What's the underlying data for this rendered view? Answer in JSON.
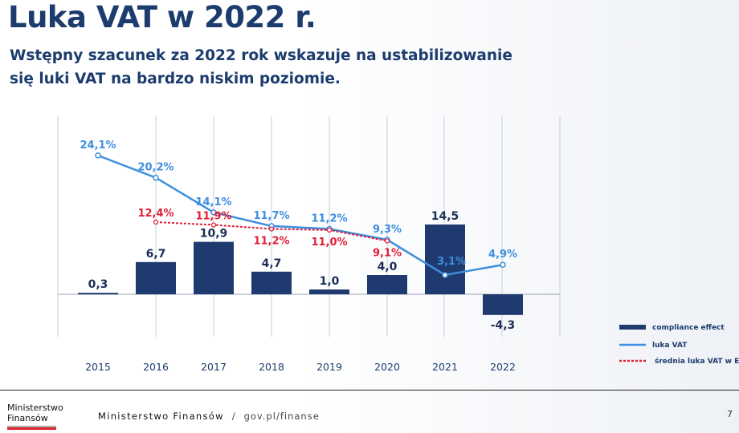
{
  "title": "Luka VAT w 2022 r.",
  "subtitle": "Wstępny szacunek za 2022 rok wskazuje na ustabilizowanie się luki VAT na bardzo niskim poziomie.",
  "footer": {
    "logo": "Ministerstwo Finansów",
    "org": "Ministerstwo Finansów",
    "sep": "/",
    "url": "gov.pl/finanse",
    "page": "7"
  },
  "colors": {
    "bar": "#1f3a6e",
    "line": "#3d8ee0",
    "eu": "#e01f38"
  },
  "chart_data": {
    "type": "bar+line",
    "categories": [
      "2015",
      "2016",
      "2017",
      "2018",
      "2019",
      "2020",
      "2021",
      "2022"
    ],
    "series": [
      {
        "name": "compliance effect",
        "type": "bar",
        "values": [
          0.3,
          6.7,
          10.9,
          4.7,
          1.0,
          4.0,
          14.5,
          -4.3
        ],
        "labels": [
          "0,3",
          "6,7",
          "10,9",
          "4,7",
          "1,0",
          "4,0",
          "14,5",
          "-4,3"
        ]
      },
      {
        "name": "luka VAT",
        "type": "line",
        "unit": "%",
        "values": [
          24.1,
          20.2,
          14.1,
          11.7,
          11.2,
          9.3,
          3.1,
          4.9
        ],
        "labels": [
          "24,1%",
          "20,2%",
          "14,1%",
          "11,7%",
          "11,2%",
          "9,3%",
          "3,1%",
          "4,9%"
        ]
      },
      {
        "name": "średnia luka VAT w EU",
        "type": "line-dashed",
        "unit": "%",
        "values": [
          null,
          12.4,
          11.9,
          11.2,
          11.0,
          9.1,
          null,
          null
        ],
        "labels": [
          null,
          "12,4%",
          "11,9%",
          "11,2%",
          "11,0%",
          "9,1%",
          null,
          null
        ]
      }
    ],
    "legend_position": "bottom-right"
  }
}
